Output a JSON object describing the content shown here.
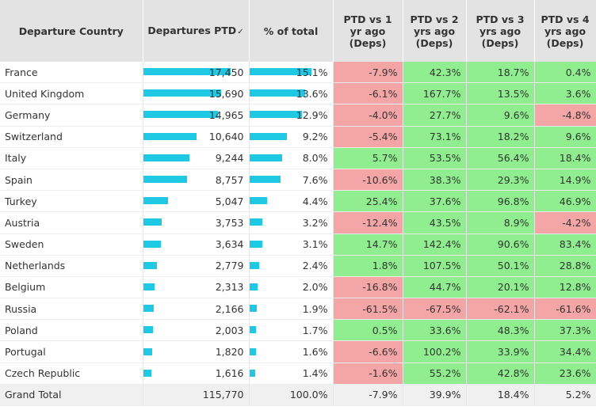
{
  "headers": {
    "country": "Departure Country",
    "departures": "Departures PTD",
    "pct_total": "% of total",
    "ptd1": "PTD vs 1 yr ago (Deps)",
    "ptd2": "PTD vs 2 yrs ago (Deps)",
    "ptd3": "PTD vs 3 yrs ago (Deps)",
    "ptd4": "PTD vs 4 yrs ago (Deps)"
  },
  "sort_icon": "sort-indicator",
  "colors": {
    "bar": "#1fc8e3",
    "positive": "#90ee90",
    "negative": "#f4a5a5",
    "header": "#e3e3e3"
  },
  "bar_max": 17450,
  "bar_pct_max": 15.1,
  "rows": [
    {
      "country": "France",
      "departures": "17,450",
      "dep_value": 17450,
      "pct": "15.1%",
      "pct_value": 15.1,
      "v1": "-7.9%",
      "v2": "42.3%",
      "v3": "18.7%",
      "v4": "0.4%"
    },
    {
      "country": "United Kingdom",
      "departures": "15,690",
      "dep_value": 15690,
      "pct": "13.6%",
      "pct_value": 13.6,
      "v1": "-6.1%",
      "v2": "167.7%",
      "v3": "13.5%",
      "v4": "3.6%"
    },
    {
      "country": "Germany",
      "departures": "14,965",
      "dep_value": 14965,
      "pct": "12.9%",
      "pct_value": 12.9,
      "v1": "-4.0%",
      "v2": "27.7%",
      "v3": "9.6%",
      "v4": "-4.8%"
    },
    {
      "country": "Switzerland",
      "departures": "10,640",
      "dep_value": 10640,
      "pct": "9.2%",
      "pct_value": 9.2,
      "v1": "-5.4%",
      "v2": "73.1%",
      "v3": "18.2%",
      "v4": "9.6%"
    },
    {
      "country": "Italy",
      "departures": "9,244",
      "dep_value": 9244,
      "pct": "8.0%",
      "pct_value": 8.0,
      "v1": "5.7%",
      "v2": "53.5%",
      "v3": "56.4%",
      "v4": "18.4%"
    },
    {
      "country": "Spain",
      "departures": "8,757",
      "dep_value": 8757,
      "pct": "7.6%",
      "pct_value": 7.6,
      "v1": "-10.6%",
      "v2": "38.3%",
      "v3": "29.3%",
      "v4": "14.9%"
    },
    {
      "country": "Turkey",
      "departures": "5,047",
      "dep_value": 5047,
      "pct": "4.4%",
      "pct_value": 4.4,
      "v1": "25.4%",
      "v2": "37.6%",
      "v3": "96.8%",
      "v4": "46.9%"
    },
    {
      "country": "Austria",
      "departures": "3,753",
      "dep_value": 3753,
      "pct": "3.2%",
      "pct_value": 3.2,
      "v1": "-12.4%",
      "v2": "43.5%",
      "v3": "8.9%",
      "v4": "-4.2%"
    },
    {
      "country": "Sweden",
      "departures": "3,634",
      "dep_value": 3634,
      "pct": "3.1%",
      "pct_value": 3.1,
      "v1": "14.7%",
      "v2": "142.4%",
      "v3": "90.6%",
      "v4": "83.4%"
    },
    {
      "country": "Netherlands",
      "departures": "2,779",
      "dep_value": 2779,
      "pct": "2.4%",
      "pct_value": 2.4,
      "v1": "1.8%",
      "v2": "107.5%",
      "v3": "50.1%",
      "v4": "28.8%"
    },
    {
      "country": "Belgium",
      "departures": "2,313",
      "dep_value": 2313,
      "pct": "2.0%",
      "pct_value": 2.0,
      "v1": "-16.8%",
      "v2": "44.7%",
      "v3": "20.1%",
      "v4": "12.8%"
    },
    {
      "country": "Russia",
      "departures": "2,166",
      "dep_value": 2166,
      "pct": "1.9%",
      "pct_value": 1.9,
      "v1": "-61.5%",
      "v2": "-67.5%",
      "v3": "-62.1%",
      "v4": "-61.6%"
    },
    {
      "country": "Poland",
      "departures": "2,003",
      "dep_value": 2003,
      "pct": "1.7%",
      "pct_value": 1.7,
      "v1": "0.5%",
      "v2": "33.6%",
      "v3": "48.3%",
      "v4": "37.3%"
    },
    {
      "country": "Portugal",
      "departures": "1,820",
      "dep_value": 1820,
      "pct": "1.6%",
      "pct_value": 1.6,
      "v1": "-6.6%",
      "v2": "100.2%",
      "v3": "33.9%",
      "v4": "34.4%"
    },
    {
      "country": "Czech Republic",
      "departures": "1,616",
      "dep_value": 1616,
      "pct": "1.4%",
      "pct_value": 1.4,
      "v1": "-1.6%",
      "v2": "55.2%",
      "v3": "42.8%",
      "v4": "23.6%"
    }
  ],
  "total": {
    "country": "Grand Total",
    "departures": "115,770",
    "pct": "100.0%",
    "v1": "-7.9%",
    "v2": "39.9%",
    "v3": "18.4%",
    "v4": "5.2%"
  }
}
